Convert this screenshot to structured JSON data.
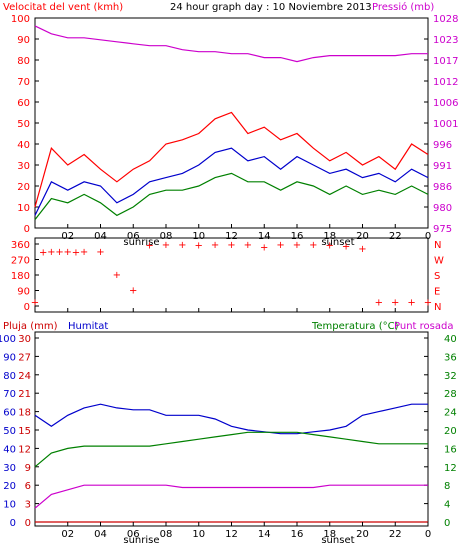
{
  "header": {
    "left_title": "Velocitat del vent (kmh)",
    "center_title": "24 hour graph day : 10 Noviembre 2013",
    "right_title": "Pressió (mb)",
    "rain_label": "Pluja (mm)",
    "humidity_label": "Humitat",
    "temp_label": "Temperatura (°C)",
    "dew_label": "Punt rosada",
    "sunrise_label": "sunrise",
    "sunset_label": "sunset"
  },
  "colors": {
    "wind_gust": "#ff0000",
    "wind_avg": "#0000cc",
    "wind_min": "#008000",
    "pressure": "#cc00cc",
    "direction": "#ff0000",
    "humidity": "#0000cc",
    "temperature": "#008000",
    "dewpoint": "#cc00cc",
    "rain": "#cc0000"
  },
  "chart_data": [
    {
      "type": "line",
      "name": "wind-pressure",
      "x_ticks": [
        "02",
        "04",
        "06",
        "08",
        "10",
        "12",
        "14",
        "16",
        "18",
        "20",
        "22",
        "0"
      ],
      "y_left_ticks": [
        0,
        10,
        20,
        30,
        40,
        50,
        60,
        70,
        80,
        90,
        100
      ],
      "y_right_ticks": [
        975,
        980,
        986,
        991,
        996,
        1001,
        1006,
        1012,
        1017,
        1023,
        1028
      ],
      "ylim_left": [
        0,
        100
      ],
      "ylim_right": [
        975,
        1028
      ],
      "series": [
        {
          "name": "Velocitat del vent (kmh)",
          "x": [
            0,
            1,
            2,
            3,
            4,
            5,
            6,
            7,
            8,
            9,
            10,
            11,
            12,
            13,
            14,
            15,
            16,
            17,
            18,
            19,
            20,
            21,
            22,
            23,
            24
          ],
          "values": [
            10,
            38,
            30,
            35,
            28,
            22,
            28,
            32,
            40,
            42,
            45,
            52,
            55,
            45,
            48,
            42,
            45,
            38,
            32,
            36,
            30,
            34,
            28,
            40,
            35
          ]
        },
        {
          "x": [
            0,
            1,
            2,
            3,
            4,
            5,
            6,
            7,
            8,
            9,
            10,
            11,
            12,
            13,
            14,
            15,
            16,
            17,
            18,
            19,
            20,
            21,
            22,
            23,
            24
          ],
          "values": [
            6,
            22,
            18,
            22,
            20,
            12,
            16,
            22,
            24,
            26,
            30,
            36,
            38,
            32,
            34,
            28,
            34,
            30,
            26,
            28,
            24,
            26,
            22,
            28,
            24
          ]
        },
        {
          "x": [
            0,
            1,
            2,
            3,
            4,
            5,
            6,
            7,
            8,
            9,
            10,
            11,
            12,
            13,
            14,
            15,
            16,
            17,
            18,
            19,
            20,
            21,
            22,
            23,
            24
          ],
          "values": [
            4,
            14,
            12,
            16,
            12,
            6,
            10,
            16,
            18,
            18,
            20,
            24,
            26,
            22,
            22,
            18,
            22,
            20,
            16,
            20,
            16,
            18,
            16,
            20,
            16
          ]
        },
        {
          "name": "Pressió (mb)",
          "x": [
            0,
            1,
            2,
            3,
            4,
            5,
            6,
            7,
            8,
            9,
            10,
            11,
            12,
            13,
            14,
            15,
            16,
            17,
            18,
            19,
            20,
            21,
            22,
            23,
            24
          ],
          "values": [
            1026,
            1024,
            1023,
            1023,
            1022.5,
            1022,
            1021.5,
            1021,
            1021,
            1020,
            1019.5,
            1019.5,
            1019,
            1019,
            1018,
            1018,
            1017,
            1018,
            1018.5,
            1018.5,
            1018.5,
            1018.5,
            1018.5,
            1019,
            1019
          ]
        }
      ]
    },
    {
      "type": "scatter",
      "name": "wind-direction",
      "x_ticks": [
        "02",
        "04",
        "06",
        "08",
        "10",
        "12",
        "14",
        "16",
        "18",
        "20",
        "22",
        "0"
      ],
      "y_left_ticks": [
        0,
        90,
        180,
        270,
        360
      ],
      "y_right_ticks": [
        "N",
        "E",
        "S",
        "W",
        "N"
      ],
      "ylim": [
        0,
        360
      ],
      "series": [
        {
          "x": [
            0,
            0.5,
            1,
            1.5,
            2,
            2.5,
            3,
            4,
            5,
            6,
            7,
            8,
            9,
            10,
            11,
            12,
            13,
            14,
            15,
            16,
            17,
            18,
            19,
            20,
            21,
            22,
            23,
            24
          ],
          "values": [
            20,
            310,
            315,
            315,
            315,
            310,
            315,
            315,
            180,
            90,
            350,
            355,
            355,
            350,
            355,
            355,
            355,
            340,
            355,
            355,
            355,
            350,
            345,
            330,
            20,
            20,
            20,
            20
          ]
        }
      ]
    },
    {
      "type": "line",
      "name": "humidity-temp",
      "x_ticks": [
        "02",
        "04",
        "06",
        "08",
        "10",
        "12",
        "14",
        "16",
        "18",
        "20",
        "22",
        "0"
      ],
      "y_left_ticks": [
        0,
        10,
        20,
        30,
        40,
        50,
        60,
        70,
        80,
        90,
        100
      ],
      "y_left2_ticks": [
        0,
        3,
        6,
        9,
        12,
        15,
        18,
        21,
        24,
        27,
        30
      ],
      "y_right_ticks": [
        0,
        4,
        8,
        12,
        16,
        20,
        24,
        28,
        32,
        36,
        40
      ],
      "ylim_left": [
        0,
        100
      ],
      "ylim_right": [
        0,
        40
      ],
      "series": [
        {
          "name": "Humitat",
          "x": [
            0,
            1,
            2,
            3,
            4,
            5,
            6,
            7,
            8,
            9,
            10,
            11,
            12,
            13,
            14,
            15,
            16,
            17,
            18,
            19,
            20,
            21,
            22,
            23,
            24
          ],
          "values": [
            58,
            52,
            58,
            62,
            64,
            62,
            61,
            61,
            58,
            58,
            58,
            56,
            52,
            50,
            49,
            48,
            48,
            49,
            50,
            52,
            58,
            60,
            62,
            64,
            64
          ]
        },
        {
          "name": "Temperatura (°C)",
          "x": [
            0,
            1,
            2,
            3,
            4,
            5,
            6,
            7,
            8,
            9,
            10,
            11,
            12,
            13,
            14,
            15,
            16,
            17,
            18,
            19,
            20,
            21,
            22,
            23,
            24
          ],
          "values": [
            12,
            15,
            16,
            16.5,
            16.5,
            16.5,
            16.5,
            16.5,
            17,
            17.5,
            18,
            18.5,
            19,
            19.5,
            19.5,
            19.5,
            19.5,
            19,
            18.5,
            18,
            17.5,
            17,
            17,
            17,
            17
          ]
        },
        {
          "name": "Punt rosada",
          "x": [
            0,
            1,
            2,
            3,
            4,
            5,
            6,
            7,
            8,
            9,
            10,
            11,
            12,
            13,
            14,
            15,
            16,
            17,
            18,
            19,
            20,
            21,
            22,
            23,
            24
          ],
          "values": [
            3,
            6,
            7,
            8,
            8,
            8,
            8,
            8,
            8,
            7.5,
            7.5,
            7.5,
            7.5,
            7.5,
            7.5,
            7.5,
            7.5,
            7.5,
            8,
            8,
            8,
            8,
            8,
            8,
            8
          ]
        },
        {
          "name": "Pluja (mm)",
          "x": [
            0,
            24
          ],
          "values": [
            0,
            0
          ]
        }
      ]
    }
  ]
}
